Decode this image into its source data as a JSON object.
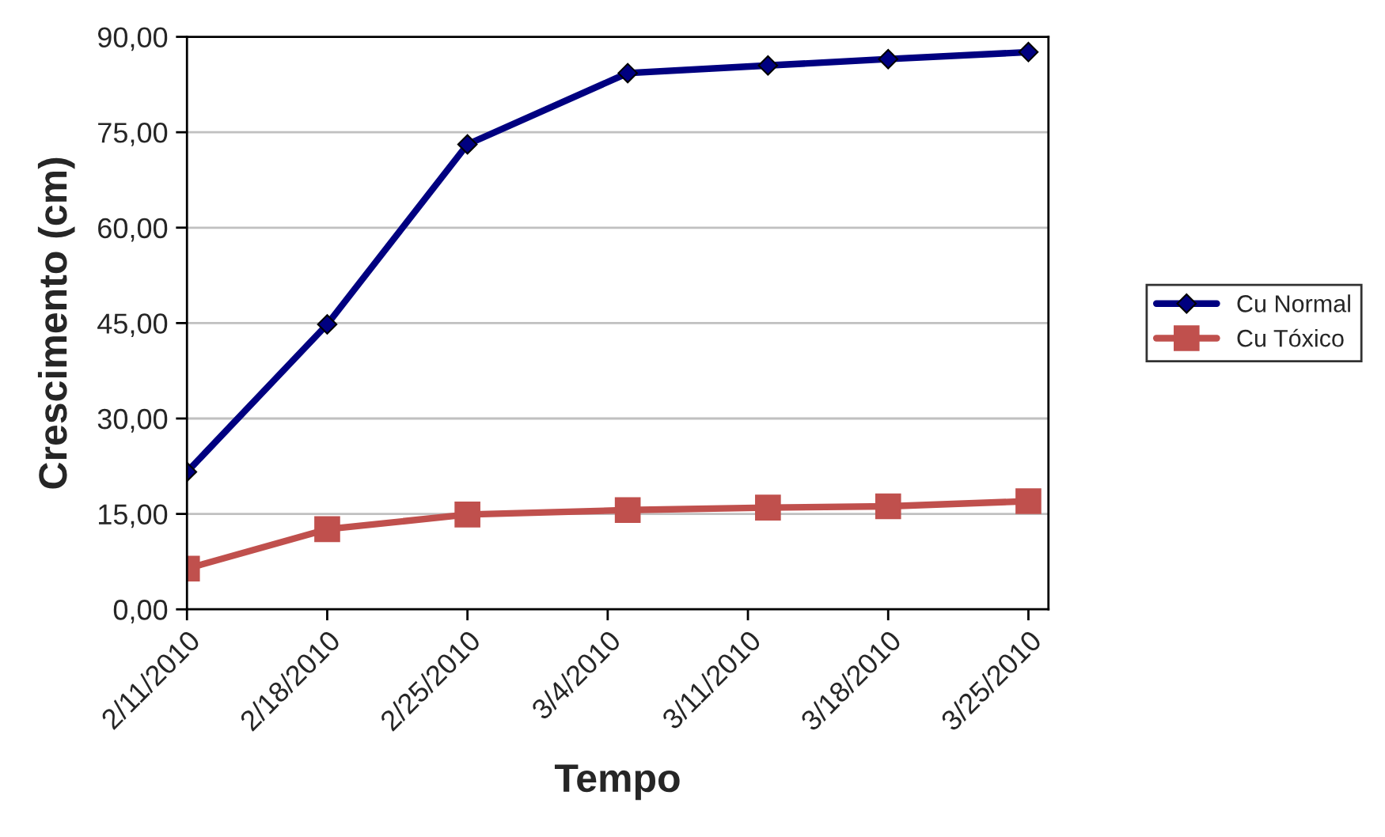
{
  "chart_data": {
    "type": "line",
    "xlabel": "Tempo",
    "ylabel": "Crescimento (cm)",
    "x": [
      "2010-02-11",
      "2010-02-18",
      "2010-02-25",
      "2010-03-05",
      "2010-03-12",
      "2010-03-18",
      "2010-03-25"
    ],
    "series": [
      {
        "name": "Cu Normal",
        "color": "#000080",
        "marker": "diamond",
        "values": [
          21.6,
          44.8,
          73.1,
          84.3,
          85.5,
          86.5,
          87.6
        ]
      },
      {
        "name": "Cu Tóxico",
        "color": "#c0504d",
        "marker": "square",
        "values": [
          6.4,
          12.6,
          14.9,
          15.6,
          16.0,
          16.2,
          17.0
        ]
      }
    ],
    "xlim": [
      "2010-02-11",
      "2010-03-26"
    ],
    "xticks": [
      {
        "value": "2010-02-11",
        "label": "2/11/2010"
      },
      {
        "value": "2010-02-18",
        "label": "2/18/2010"
      },
      {
        "value": "2010-02-25",
        "label": "2/25/2010"
      },
      {
        "value": "2010-03-04",
        "label": "3/4/2010"
      },
      {
        "value": "2010-03-11",
        "label": "3/11/2010"
      },
      {
        "value": "2010-03-18",
        "label": "3/18/2010"
      },
      {
        "value": "2010-03-25",
        "label": "3/25/2010"
      }
    ],
    "ylim": [
      0,
      90
    ],
    "yticks": [
      {
        "value": 0,
        "label": "0,00"
      },
      {
        "value": 15,
        "label": "15,00"
      },
      {
        "value": 30,
        "label": "30,00"
      },
      {
        "value": 45,
        "label": "45,00"
      },
      {
        "value": 60,
        "label": "60,00"
      },
      {
        "value": 75,
        "label": "75,00"
      },
      {
        "value": 90,
        "label": "90,00"
      }
    ],
    "grid": "y",
    "legend": "right",
    "line_style": "solid"
  }
}
